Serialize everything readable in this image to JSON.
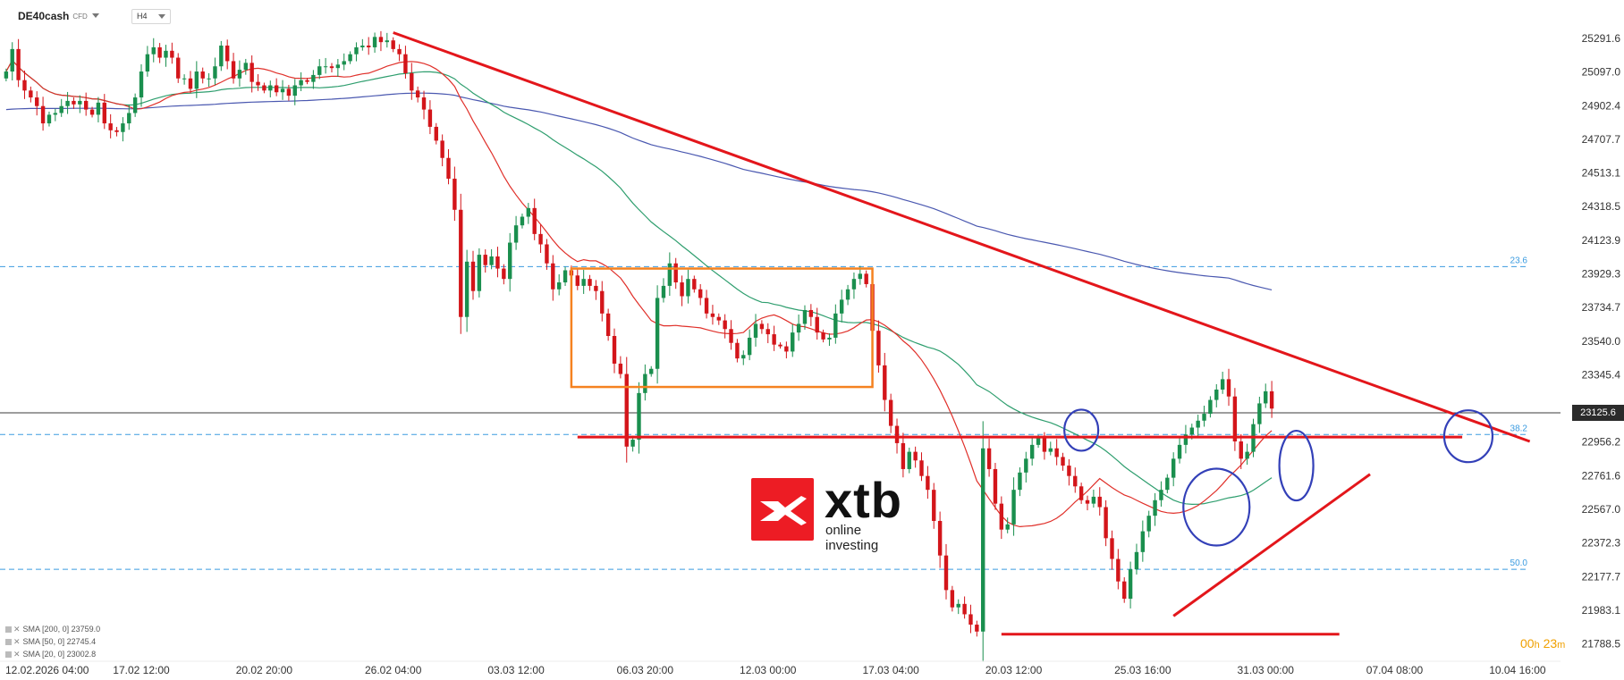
{
  "header": {
    "symbol": "DE40cash",
    "symbol_tag": "CFD",
    "timeframe": "H4"
  },
  "legend": [
    {
      "label": "SMA [200, 0] 23759.0",
      "color": "#4a58b0"
    },
    {
      "label": "SMA [50, 0] 22745.4",
      "color": "#2e9e6e"
    },
    {
      "label": "SMA [20, 0] 23002.8",
      "color": "#e0302a"
    }
  ],
  "timer": {
    "hours": "00",
    "h": "h",
    "minutes": "23",
    "m": "m"
  },
  "logo": {
    "word": "xtb",
    "tagline": "online investing"
  },
  "current_price_label": "23125.6",
  "chart_data": {
    "type": "candlestick",
    "y_ticks": [
      {
        "value": 25291.6,
        "label": "25291.6"
      },
      {
        "value": 25097.0,
        "label": "25097.0"
      },
      {
        "value": 24902.4,
        "label": "24902.4"
      },
      {
        "value": 24707.7,
        "label": "24707.7"
      },
      {
        "value": 24513.1,
        "label": "24513.1"
      },
      {
        "value": 24318.5,
        "label": "24318.5"
      },
      {
        "value": 24123.9,
        "label": "24123.9"
      },
      {
        "value": 23929.3,
        "label": "23929.3"
      },
      {
        "value": 23734.7,
        "label": "23734.7"
      },
      {
        "value": 23540.0,
        "label": "23540.0"
      },
      {
        "value": 23345.4,
        "label": "23345.4"
      },
      {
        "value": 22956.2,
        "label": "22956.2"
      },
      {
        "value": 22761.6,
        "label": "22761.6"
      },
      {
        "value": 22567.0,
        "label": "22567.0"
      },
      {
        "value": 22372.3,
        "label": "22372.3"
      },
      {
        "value": 22177.7,
        "label": "22177.7"
      },
      {
        "value": 21983.1,
        "label": "21983.1"
      },
      {
        "value": 21788.5,
        "label": "21788.5"
      }
    ],
    "x_ticks": [
      {
        "bar": 0,
        "label": "12.02.2026 04:00"
      },
      {
        "bar": 22,
        "label": "17.02 12:00"
      },
      {
        "bar": 42,
        "label": "20.02 20:00"
      },
      {
        "bar": 63,
        "label": "26.02 04:00"
      },
      {
        "bar": 83,
        "label": "03.03 12:00"
      },
      {
        "bar": 104,
        "label": "06.03 20:00"
      },
      {
        "bar": 124,
        "label": "12.03 00:00"
      },
      {
        "bar": 144,
        "label": "17.03 04:00"
      },
      {
        "bar": 164,
        "label": "20.03 12:00"
      },
      {
        "bar": 185,
        "label": "25.03 16:00"
      },
      {
        "bar": 205,
        "label": "31.03 00:00"
      },
      {
        "bar": 226,
        "label": "07.04 08:00"
      },
      {
        "bar": 246,
        "label": "10.04 16:00"
      }
    ],
    "y_range": [
      21740,
      25400
    ],
    "bar_range": [
      -1,
      253
    ],
    "fib_levels": [
      {
        "label": "23.6",
        "value": 23971
      },
      {
        "label": "38.2",
        "value": 23000
      },
      {
        "label": "50.0",
        "value": 22220
      }
    ],
    "current_price": 23125.6,
    "closes": [
      25100,
      25230,
      25050,
      24990,
      24950,
      24900,
      24800,
      24850,
      24860,
      24900,
      24930,
      24910,
      24930,
      24880,
      24850,
      24920,
      24800,
      24760,
      24750,
      24800,
      24860,
      24950,
      25100,
      25200,
      25240,
      25180,
      25220,
      25180,
      25060,
      25060,
      25000,
      25100,
      25060,
      25060,
      25130,
      25250,
      25160,
      25060,
      25110,
      25150,
      25040,
      25020,
      24990,
      25020,
      24980,
      25000,
      24960,
      25020,
      25050,
      25040,
      25080,
      25130,
      25130,
      25120,
      25140,
      25160,
      25200,
      25240,
      25250,
      25240,
      25300,
      25270,
      25280,
      25230,
      25200,
      25090,
      24990,
      24950,
      24880,
      24780,
      24700,
      24600,
      24480,
      24300,
      23680,
      24000,
      23830,
      24040,
      23980,
      24030,
      23960,
      23900,
      24110,
      24210,
      24260,
      24310,
      24160,
      24100,
      23990,
      23840,
      23880,
      23950,
      23920,
      23860,
      23900,
      23860,
      23830,
      23700,
      23570,
      23410,
      23350,
      22930,
      22970,
      23240,
      23350,
      23380,
      23790,
      23860,
      23990,
      23880,
      23800,
      23900,
      23840,
      23790,
      23700,
      23680,
      23660,
      23610,
      23530,
      23440,
      23460,
      23560,
      23640,
      23610,
      23580,
      23520,
      23510,
      23480,
      23590,
      23640,
      23720,
      23680,
      23590,
      23550,
      23560,
      23700,
      23780,
      23840,
      23900,
      23930,
      23870,
      23600,
      23400,
      23200,
      23050,
      22950,
      22800,
      22900,
      22850,
      22760,
      22680,
      22500,
      22300,
      22100,
      22000,
      22020,
      21960,
      21900,
      21860,
      22920,
      22800,
      22600,
      22450,
      22480,
      22680,
      22780,
      22860,
      22940,
      22980,
      22900,
      22920,
      22870,
      22820,
      22760,
      22700,
      22620,
      22600,
      22640,
      22580,
      22400,
      22280,
      22150,
      22050,
      22220,
      22320,
      22440,
      22530,
      22620,
      22680,
      22750,
      22860,
      22940,
      23000,
      23040,
      23080,
      23120,
      23200,
      23260,
      23320,
      23220,
      22960,
      22860,
      22900,
      23060,
      23180,
      23250,
      23150
    ]
  }
}
